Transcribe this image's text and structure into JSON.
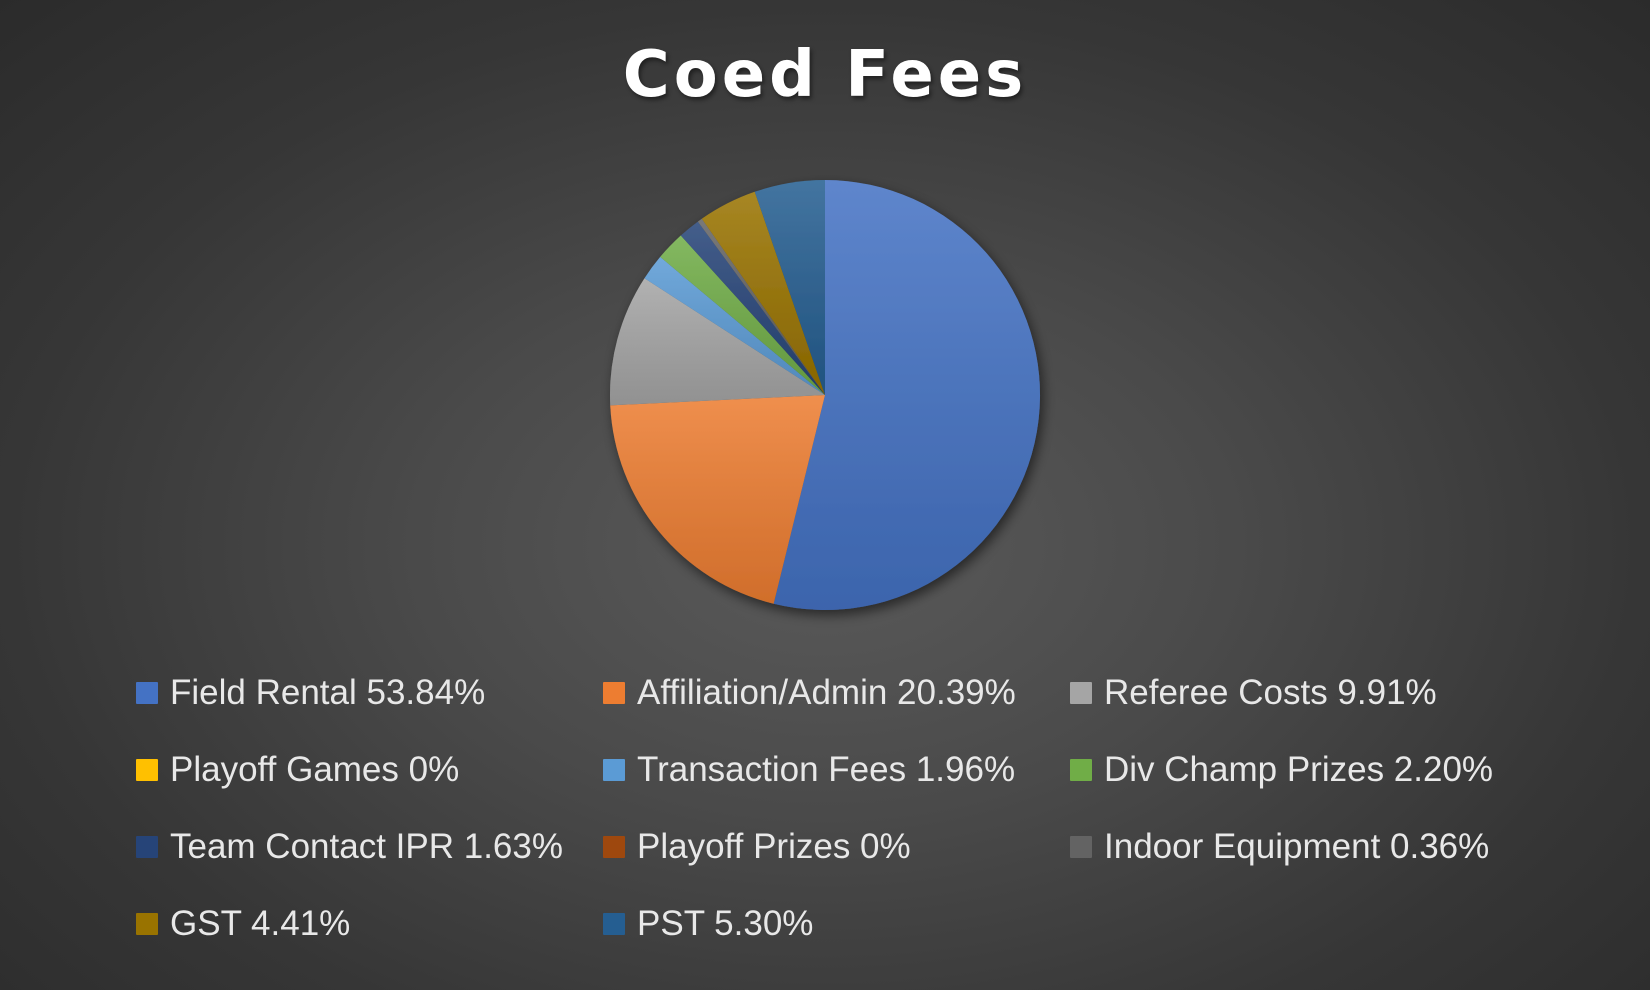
{
  "chart_data": {
    "type": "pie",
    "title": "Coed Fees",
    "slices": [
      {
        "label": "Field Rental 53.84%",
        "name": "Field Rental",
        "value": 53.84,
        "color": "#4472c4"
      },
      {
        "label": "Affiliation/Admin 20.39%",
        "name": "Affiliation/Admin",
        "value": 20.39,
        "color": "#ed7d31"
      },
      {
        "label": "Referee Costs 9.91%",
        "name": "Referee Costs",
        "value": 9.91,
        "color": "#a5a5a5"
      },
      {
        "label": "Playoff Games 0%",
        "name": "Playoff Games",
        "value": 0,
        "color": "#ffc000"
      },
      {
        "label": "Transaction Fees 1.96%",
        "name": "Transaction Fees",
        "value": 1.96,
        "color": "#5b9bd5"
      },
      {
        "label": "Div Champ Prizes 2.20%",
        "name": "Div Champ Prizes",
        "value": 2.2,
        "color": "#70ad47"
      },
      {
        "label": "Team Contact IPR 1.63%",
        "name": "Team Contact IPR",
        "value": 1.63,
        "color": "#264478"
      },
      {
        "label": "Playoff Prizes 0%",
        "name": "Playoff Prizes",
        "value": 0,
        "color": "#9e480e"
      },
      {
        "label": "Indoor Equipment 0.36%",
        "name": "Indoor Equipment",
        "value": 0.36,
        "color": "#636363"
      },
      {
        "label": "GST 4.41%",
        "name": "GST",
        "value": 4.41,
        "color": "#997300"
      },
      {
        "label": "PST 5.30%",
        "name": "PST",
        "value": 5.3,
        "color": "#255e91"
      }
    ],
    "legend_position": "bottom"
  }
}
